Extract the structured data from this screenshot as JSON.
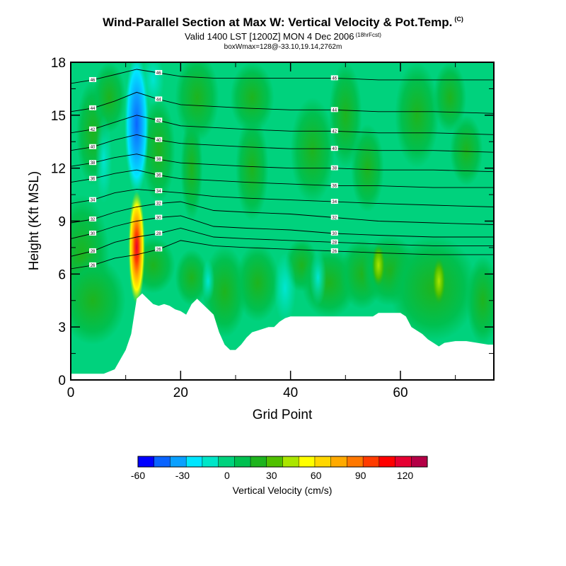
{
  "header": {
    "title": "Wind-Parallel Section at Max W: Vertical Velocity & Pot.Temp.",
    "title_flag": "(C)",
    "valid": "Valid 1400 LST [1200Z] MON 4 Dec 2006",
    "fcst": "(18hrFcst)",
    "box": "boxWmax=128@-33.10,19.14,2762m"
  },
  "chart_data": {
    "type": "heatmap",
    "title": "Wind-Parallel Section at Max W: Vertical Velocity & Pot.Temp.",
    "xlabel": "Grid Point",
    "ylabel": "Height (Kft MSL)",
    "xlim": [
      0,
      77
    ],
    "ylim": [
      0,
      18
    ],
    "x_ticks": [
      0,
      20,
      40,
      60
    ],
    "y_ticks": [
      0,
      3,
      6,
      9,
      12,
      15,
      18
    ],
    "background_value_range": "0 to 15 cm/s",
    "updraft_max": {
      "x": 12,
      "y": 7.5,
      "value": 128
    },
    "downdraft_min": {
      "x": 12,
      "y": 13,
      "value": -45
    },
    "terrain": {
      "x": [
        0,
        3,
        6,
        8,
        10,
        11,
        12,
        13,
        14,
        15,
        16,
        17,
        18,
        19,
        20,
        21,
        22,
        23,
        24,
        25,
        26,
        27,
        28,
        29,
        30,
        31,
        32,
        33,
        34,
        35,
        36,
        37,
        38,
        39,
        40,
        45,
        50,
        55,
        56,
        57,
        58,
        59,
        60,
        61,
        62,
        63,
        64,
        65,
        66,
        67,
        68,
        70,
        72,
        74,
        76,
        77
      ],
      "height": [
        0.35,
        0.35,
        0.35,
        0.6,
        1.7,
        2.6,
        4.6,
        4.9,
        4.6,
        4.3,
        4.2,
        4.3,
        4.2,
        4.0,
        3.9,
        3.7,
        4.3,
        4.6,
        4.3,
        4.0,
        3.7,
        2.7,
        2.0,
        1.7,
        1.7,
        2.0,
        2.4,
        2.7,
        2.8,
        2.9,
        3.0,
        3.0,
        3.3,
        3.5,
        3.6,
        3.6,
        3.6,
        3.6,
        3.8,
        3.8,
        3.8,
        3.8,
        3.8,
        3.6,
        3.0,
        2.8,
        2.6,
        2.3,
        2.1,
        1.9,
        2.1,
        2.2,
        2.2,
        2.1,
        2.0,
        2.0
      ]
    },
    "theta_contours": [
      {
        "label": "26",
        "y": [
          6.3,
          6.5,
          6.9,
          7.1,
          7.4,
          7.9,
          7.6,
          7.5,
          7.4,
          7.3,
          7.2,
          7.1,
          7.1
        ]
      },
      {
        "label": "28",
        "y": [
          7.0,
          7.3,
          7.8,
          8.1,
          8.3,
          8.6,
          8.1,
          8.0,
          7.9,
          7.8,
          7.7,
          7.6,
          7.6
        ]
      },
      {
        "label": "30",
        "y": [
          8.0,
          8.3,
          8.7,
          9.0,
          9.2,
          9.3,
          8.7,
          8.6,
          8.5,
          8.3,
          8.2,
          8.1,
          8.1
        ]
      },
      {
        "label": "32",
        "y": [
          8.9,
          9.1,
          9.5,
          9.8,
          10.0,
          10.1,
          9.6,
          9.5,
          9.4,
          9.2,
          9.0,
          8.9,
          8.8
        ]
      },
      {
        "label": "34",
        "y": [
          10.0,
          10.2,
          10.6,
          10.8,
          10.7,
          10.6,
          10.4,
          10.3,
          10.2,
          10.1,
          10.0,
          9.9,
          9.8
        ]
      },
      {
        "label": "36",
        "y": [
          11.2,
          11.4,
          11.7,
          11.9,
          11.6,
          11.4,
          11.3,
          11.2,
          11.1,
          11.0,
          11.0,
          10.9,
          10.9
        ]
      },
      {
        "label": "38",
        "y": [
          12.1,
          12.3,
          12.6,
          12.8,
          12.5,
          12.3,
          12.2,
          12.1,
          12.0,
          12.0,
          11.9,
          11.9,
          11.8
        ]
      },
      {
        "label": "40",
        "y": [
          13.0,
          13.2,
          13.6,
          13.9,
          13.6,
          13.4,
          13.3,
          13.2,
          13.1,
          13.1,
          13.0,
          13.0,
          12.9
        ]
      },
      {
        "label": "42",
        "y": [
          14.0,
          14.2,
          14.6,
          15.0,
          14.7,
          14.4,
          14.3,
          14.2,
          14.1,
          14.1,
          14.0,
          14.0,
          13.9
        ]
      },
      {
        "label": "44",
        "y": [
          15.2,
          15.4,
          15.8,
          16.3,
          15.9,
          15.6,
          15.5,
          15.4,
          15.3,
          15.3,
          15.2,
          15.2,
          15.1
        ]
      },
      {
        "label": "46",
        "y": [
          16.8,
          17.0,
          17.3,
          17.6,
          17.4,
          17.2,
          17.1,
          17.1,
          17.1,
          17.1,
          17.0,
          17.0,
          17.0
        ]
      }
    ],
    "contour_x": [
      0,
      4,
      8,
      12,
      16,
      20,
      26,
      32,
      40,
      48,
      56,
      66,
      77
    ],
    "colorbar": {
      "label": "Vertical Velocity (cm/s)",
      "ticks": [
        "-60",
        "-30",
        "0",
        "30",
        "60",
        "90",
        "120"
      ],
      "tick_values": [
        -60,
        -30,
        0,
        30,
        60,
        90,
        120
      ],
      "min": -60,
      "max": 135,
      "step": 15,
      "colors": [
        "#0000ff",
        "#0a64ff",
        "#0aa0ff",
        "#00e6ff",
        "#00e6c8",
        "#00d27d",
        "#00c050",
        "#1eb41e",
        "#50c000",
        "#aae600",
        "#ffff00",
        "#ffd700",
        "#ffaa00",
        "#ff7800",
        "#ff3c00",
        "#ff0000",
        "#e60032",
        "#b40046"
      ]
    }
  }
}
